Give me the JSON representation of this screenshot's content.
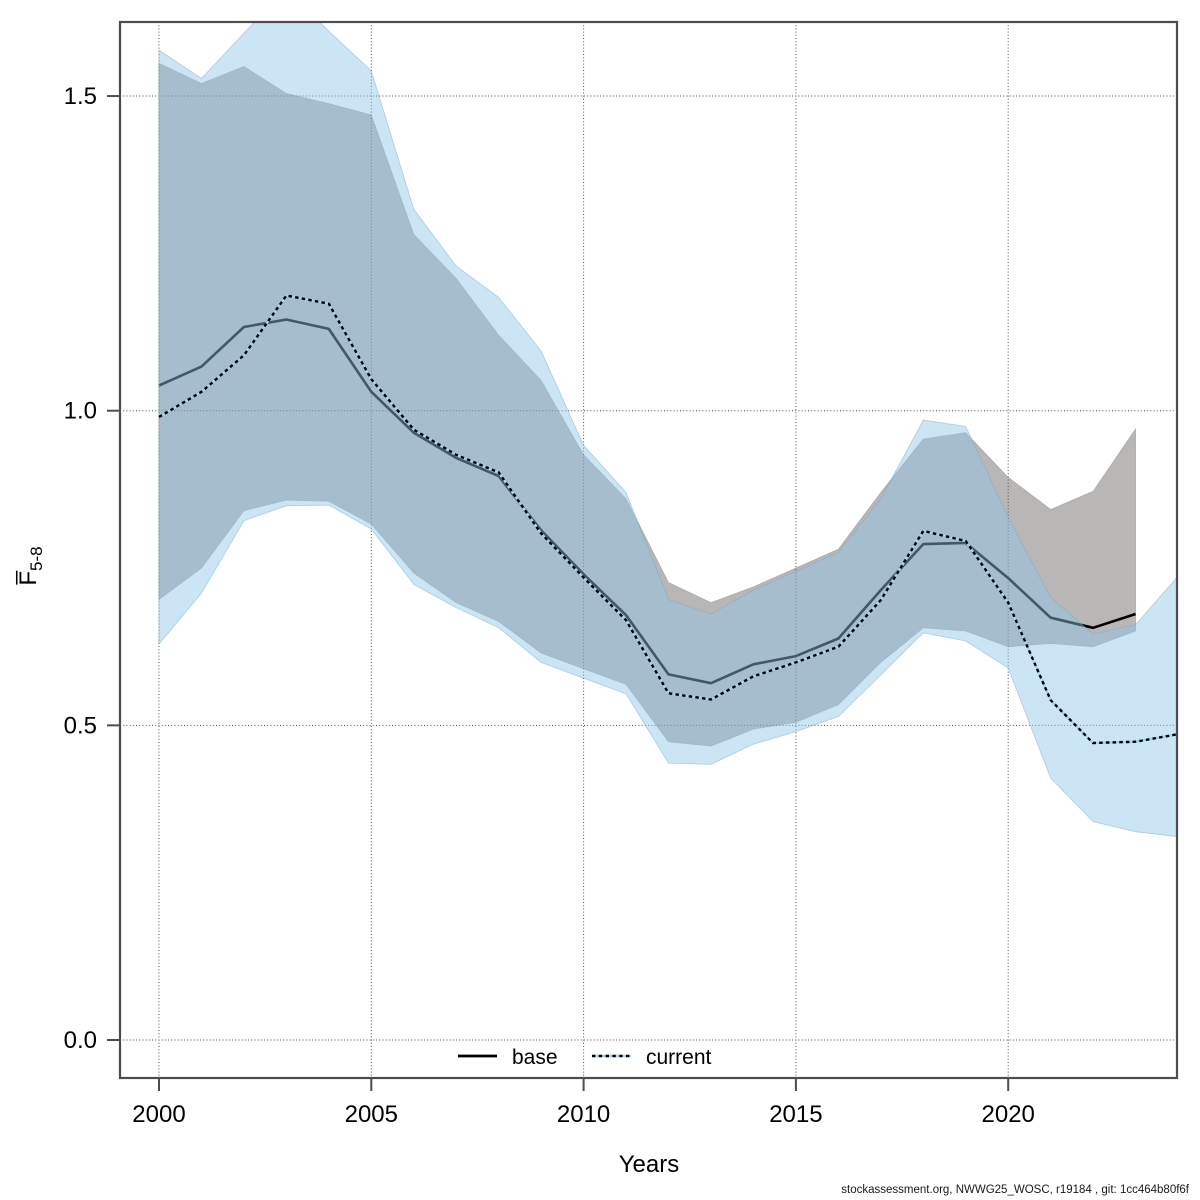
{
  "chart_data": {
    "type": "line",
    "title": "",
    "xlabel": "Years",
    "ylabel_main": "F̅",
    "ylabel_sub": "5-8",
    "footer": "stockassessment.org, NWWG25_WOSC, r19184 , git: 1cc464b80f6f",
    "x_ticks": [
      2000,
      2005,
      2010,
      2015,
      2020
    ],
    "y_ticks": [
      "0.0",
      "0.5",
      "1.0",
      "1.5"
    ],
    "y_tick_values": [
      0.0,
      0.5,
      1.0,
      1.5
    ],
    "xlim": [
      1999.08,
      2023.98
    ],
    "ylim": [
      -0.06,
      1.62
    ],
    "grid": "dotted",
    "legend_position": "bottom-center",
    "legend": [
      {
        "label": "base",
        "style": "solid",
        "color": "#000000"
      },
      {
        "label": "current",
        "style": "dotted",
        "color": "#2c6c94"
      }
    ],
    "colors": {
      "base_line": "#000000",
      "base_band": "#b9b7b5",
      "current_band": "#8fc6e8",
      "current_dash_dark": "#000000",
      "current_dash_light": "#9fd5f0",
      "grid": "#4d4d4d",
      "box": "#4d4d4d"
    },
    "series": [
      {
        "name": "base",
        "years": [
          2000,
          2001,
          2002,
          2003,
          2004,
          2005,
          2006,
          2007,
          2008,
          2009,
          2010,
          2011,
          2012,
          2013,
          2014,
          2015,
          2016,
          2017,
          2018,
          2019,
          2020,
          2021,
          2022,
          2023
        ],
        "values": [
          1.04,
          1.07,
          1.133,
          1.145,
          1.13,
          1.03,
          0.965,
          0.925,
          0.896,
          0.81,
          0.74,
          0.675,
          0.581,
          0.567,
          0.597,
          0.61,
          0.638,
          0.715,
          0.788,
          0.79,
          0.734,
          0.671,
          0.655,
          0.677
        ],
        "ci_hi": [
          1.552,
          1.52,
          1.547,
          1.504,
          1.488,
          1.47,
          1.28,
          1.21,
          1.12,
          1.048,
          0.93,
          0.86,
          0.727,
          0.695,
          0.72,
          0.75,
          0.78,
          0.87,
          0.955,
          0.965,
          0.894,
          0.843,
          0.872,
          0.971
        ],
        "ci_lo": [
          0.7,
          0.75,
          0.841,
          0.858,
          0.856,
          0.82,
          0.742,
          0.695,
          0.665,
          0.615,
          0.59,
          0.565,
          0.474,
          0.467,
          0.494,
          0.505,
          0.533,
          0.6,
          0.655,
          0.65,
          0.625,
          0.63,
          0.625,
          0.65
        ]
      },
      {
        "name": "current",
        "years": [
          2000,
          2001,
          2002,
          2003,
          2004,
          2005,
          2006,
          2007,
          2008,
          2009,
          2010,
          2011,
          2012,
          2013,
          2014,
          2015,
          2016,
          2017,
          2018,
          2019,
          2020,
          2021,
          2022,
          2023,
          2024
        ],
        "values": [
          0.99,
          1.03,
          1.088,
          1.183,
          1.17,
          1.05,
          0.97,
          0.93,
          0.902,
          0.805,
          0.735,
          0.667,
          0.551,
          0.541,
          0.578,
          0.6,
          0.625,
          0.699,
          0.809,
          0.793,
          0.695,
          0.54,
          0.472,
          0.474,
          0.486
        ],
        "ci_hi": [
          1.573,
          1.528,
          1.6,
          1.67,
          1.603,
          1.54,
          1.32,
          1.23,
          1.18,
          1.095,
          0.945,
          0.87,
          0.7,
          0.677,
          0.715,
          0.745,
          0.775,
          0.86,
          0.985,
          0.975,
          0.831,
          0.703,
          0.645,
          0.66,
          0.737
        ],
        "ci_lo": [
          0.629,
          0.71,
          0.825,
          0.849,
          0.85,
          0.812,
          0.724,
          0.687,
          0.655,
          0.6,
          0.575,
          0.55,
          0.44,
          0.438,
          0.47,
          0.49,
          0.514,
          0.58,
          0.647,
          0.634,
          0.591,
          0.416,
          0.347,
          0.331,
          0.323
        ]
      }
    ]
  }
}
